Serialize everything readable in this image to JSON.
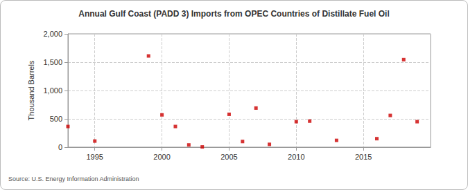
{
  "chart_data": {
    "type": "scatter",
    "title": "Annual Gulf Coast (PADD 3) Imports from OPEC Countries of Distillate Fuel Oil",
    "y_label": "Thousand Barrels",
    "annotations": [
      "Source: U.S. Energy Information Administration"
    ],
    "x": [
      1993,
      1995,
      1999,
      2000,
      2001,
      2002,
      2003,
      2005,
      2006,
      2007,
      2008,
      2010,
      2011,
      2013,
      2016,
      2017,
      2018,
      2019
    ],
    "values": [
      365,
      108,
      1610,
      570,
      365,
      40,
      5,
      580,
      100,
      690,
      50,
      450,
      460,
      120,
      150,
      560,
      1545,
      450
    ],
    "color": "#cc0000",
    "marker": "square",
    "xlim": [
      1993,
      2020
    ],
    "xticks": [
      1995,
      2000,
      2005,
      2010,
      2015
    ],
    "ylim": [
      0,
      2000
    ],
    "yticks": [
      0,
      500,
      {
        "value": 1000,
        "label": "1,000"
      },
      {
        "value": 1500,
        "label": "1,500"
      },
      {
        "value": 2000,
        "label": "2,000"
      }
    ],
    "grid": true
  }
}
